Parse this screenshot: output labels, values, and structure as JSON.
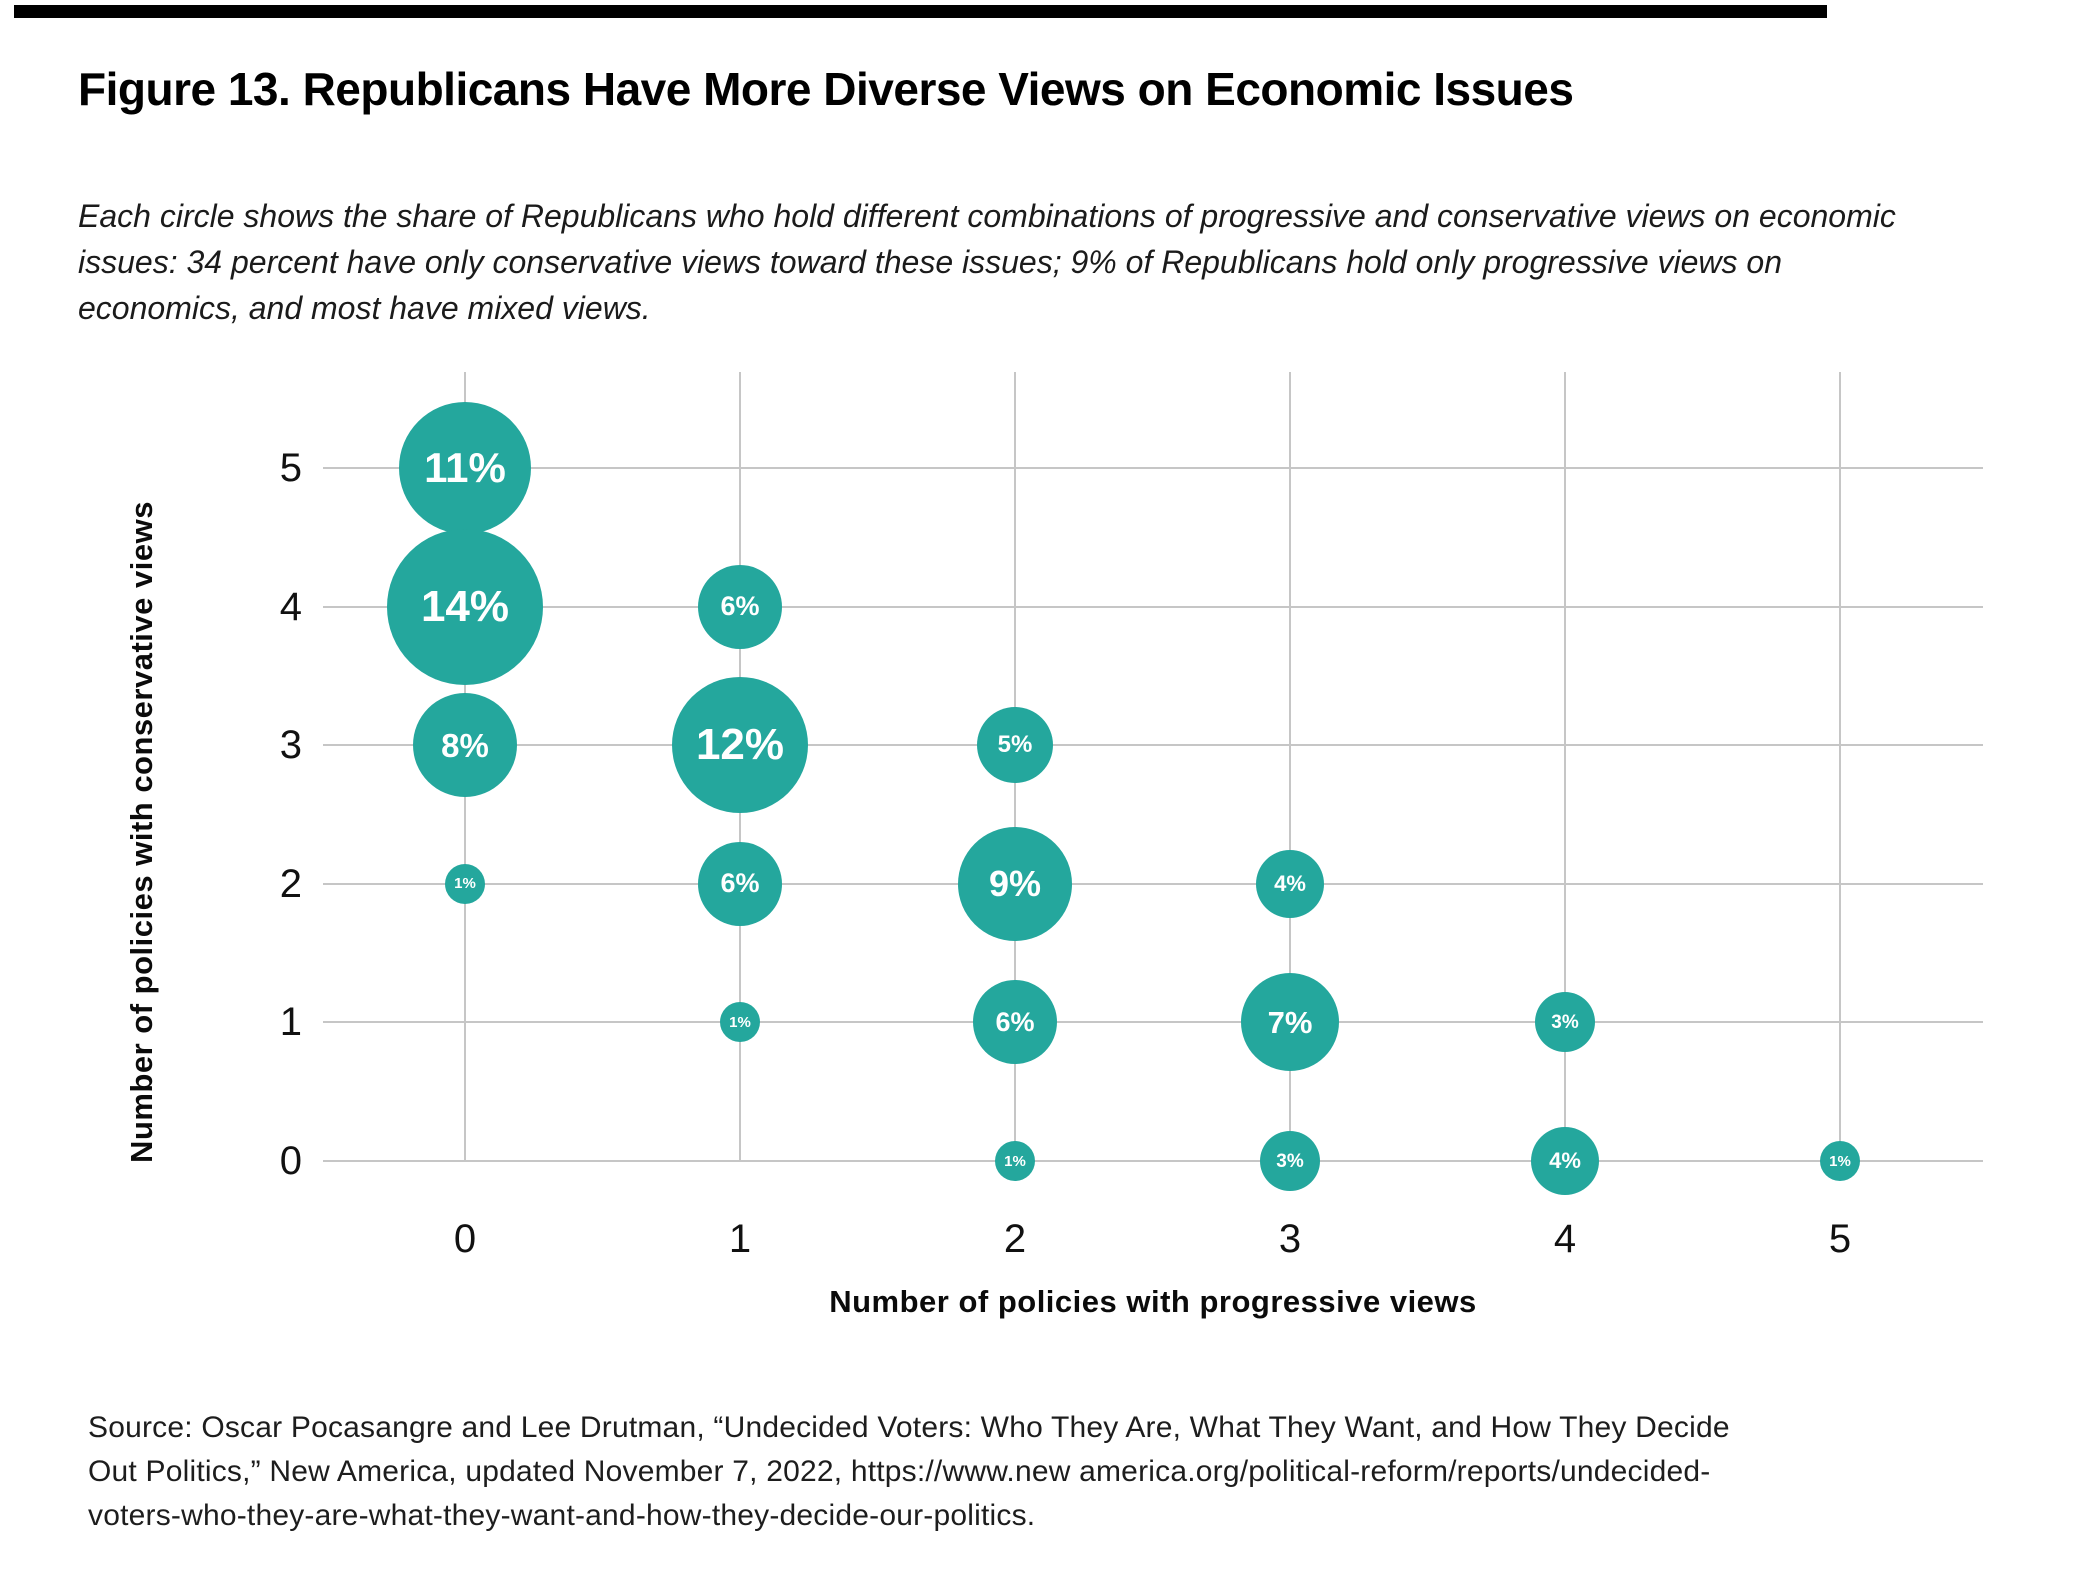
{
  "accent_bar_color": "#000000",
  "title": "Figure 13. Republicans Have More Diverse Views on Economic Issues",
  "subtitle_lines": [
    "Each circle shows the share of Republicans who hold different combinations of progressive and conservative views on economic",
    "issues: 34 percent have only conservative views toward these issues; 9% of Republicans hold only progressive views on",
    "economics, and most have mixed views."
  ],
  "source_lines": [
    "Source: Oscar Pocasangre and Lee Drutman, “Undecided Voters: Who They Are, What They Want, and How They Decide",
    "Out Politics,” New America, updated November 7, 2022, https://www.new america.org/political-reform/reports/undecided-",
    "voters-who-they-are-what-they-want-and-how-they-decide-our-politics."
  ],
  "chart_data": {
    "type": "scatter",
    "subtype": "bubble",
    "xlabel": "Number of policies with progressive views",
    "ylabel": "Number of policies with conservative views",
    "x_ticks": [
      "0",
      "1",
      "2",
      "3",
      "4",
      "5"
    ],
    "y_ticks": [
      "0",
      "1",
      "2",
      "3",
      "4",
      "5"
    ],
    "xlim": [
      0,
      5
    ],
    "ylim": [
      0,
      5
    ],
    "grid": true,
    "legend": false,
    "bubble_color": "#24a79d",
    "bubble_label_color": "#ffffff",
    "grid_color": "#c6c6c6",
    "points": [
      {
        "x": 0,
        "y": 5,
        "value": 11,
        "label": "11%",
        "r": 66
      },
      {
        "x": 0,
        "y": 4,
        "value": 14,
        "label": "14%",
        "r": 78
      },
      {
        "x": 0,
        "y": 3,
        "value": 8,
        "label": "8%",
        "r": 52
      },
      {
        "x": 0,
        "y": 2,
        "value": 1,
        "label": "1%",
        "r": 20
      },
      {
        "x": 1,
        "y": 4,
        "value": 6,
        "label": "6%",
        "r": 42
      },
      {
        "x": 1,
        "y": 3,
        "value": 12,
        "label": "12%",
        "r": 68
      },
      {
        "x": 1,
        "y": 2,
        "value": 6,
        "label": "6%",
        "r": 42
      },
      {
        "x": 1,
        "y": 1,
        "value": 1,
        "label": "1%",
        "r": 20
      },
      {
        "x": 2,
        "y": 3,
        "value": 5,
        "label": "5%",
        "r": 38
      },
      {
        "x": 2,
        "y": 2,
        "value": 9,
        "label": "9%",
        "r": 57
      },
      {
        "x": 2,
        "y": 1,
        "value": 6,
        "label": "6%",
        "r": 42
      },
      {
        "x": 2,
        "y": 0,
        "value": 1,
        "label": "1%",
        "r": 20
      },
      {
        "x": 3,
        "y": 2,
        "value": 4,
        "label": "4%",
        "r": 34
      },
      {
        "x": 3,
        "y": 1,
        "value": 7,
        "label": "7%",
        "r": 49
      },
      {
        "x": 3,
        "y": 0,
        "value": 3,
        "label": "3%",
        "r": 30
      },
      {
        "x": 4,
        "y": 1,
        "value": 3,
        "label": "3%",
        "r": 30
      },
      {
        "x": 4,
        "y": 0,
        "value": 4,
        "label": "4%",
        "r": 34
      },
      {
        "x": 5,
        "y": 0,
        "value": 1,
        "label": "1%",
        "r": 20
      }
    ]
  }
}
